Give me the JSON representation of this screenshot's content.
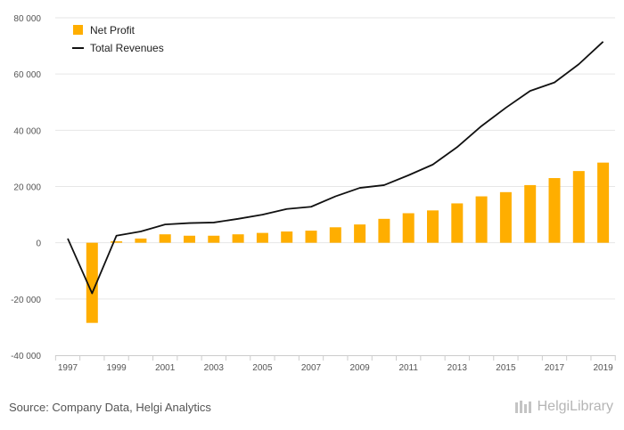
{
  "chart_data": {
    "type": "bar+line",
    "x": [
      1997,
      1998,
      1999,
      2000,
      2001,
      2002,
      2003,
      2004,
      2005,
      2006,
      2007,
      2008,
      2009,
      2010,
      2011,
      2012,
      2013,
      2014,
      2015,
      2016,
      2017,
      2018,
      2019
    ],
    "x_tick_labels": [
      "1997",
      "1999",
      "2001",
      "2003",
      "2005",
      "2007",
      "2009",
      "2011",
      "2013",
      "2015",
      "2017",
      "2019"
    ],
    "series": [
      {
        "name": "Net Profit",
        "type": "bar",
        "color": "#FFAE00",
        "values": [
          null,
          -28500,
          500,
          1500,
          3000,
          2500,
          2500,
          3000,
          3500,
          4000,
          4300,
          5500,
          6500,
          8500,
          10500,
          11500,
          14000,
          16500,
          18000,
          20500,
          23000,
          25500,
          28500
        ]
      },
      {
        "name": "Total Revenues",
        "type": "line",
        "color": "#111111",
        "values": [
          1500,
          -18000,
          2500,
          4000,
          6500,
          7000,
          7200,
          8500,
          10000,
          12000,
          12800,
          16500,
          19500,
          20500,
          24000,
          27800,
          34000,
          41500,
          48000,
          54000,
          57000,
          63500,
          71500
        ]
      }
    ],
    "ylim": [
      -40000,
      80000
    ],
    "yticks": [
      -40000,
      -20000,
      0,
      20000,
      40000,
      60000,
      80000
    ],
    "ytick_labels": [
      "-40 000",
      "-20 000",
      "0",
      "20 000",
      "40 000",
      "60 000",
      "80 000"
    ],
    "grid": true,
    "legend": "top-left"
  },
  "footer": {
    "source": "Source: Company Data, Helgi Analytics",
    "brand": "HelgiLibrary"
  }
}
